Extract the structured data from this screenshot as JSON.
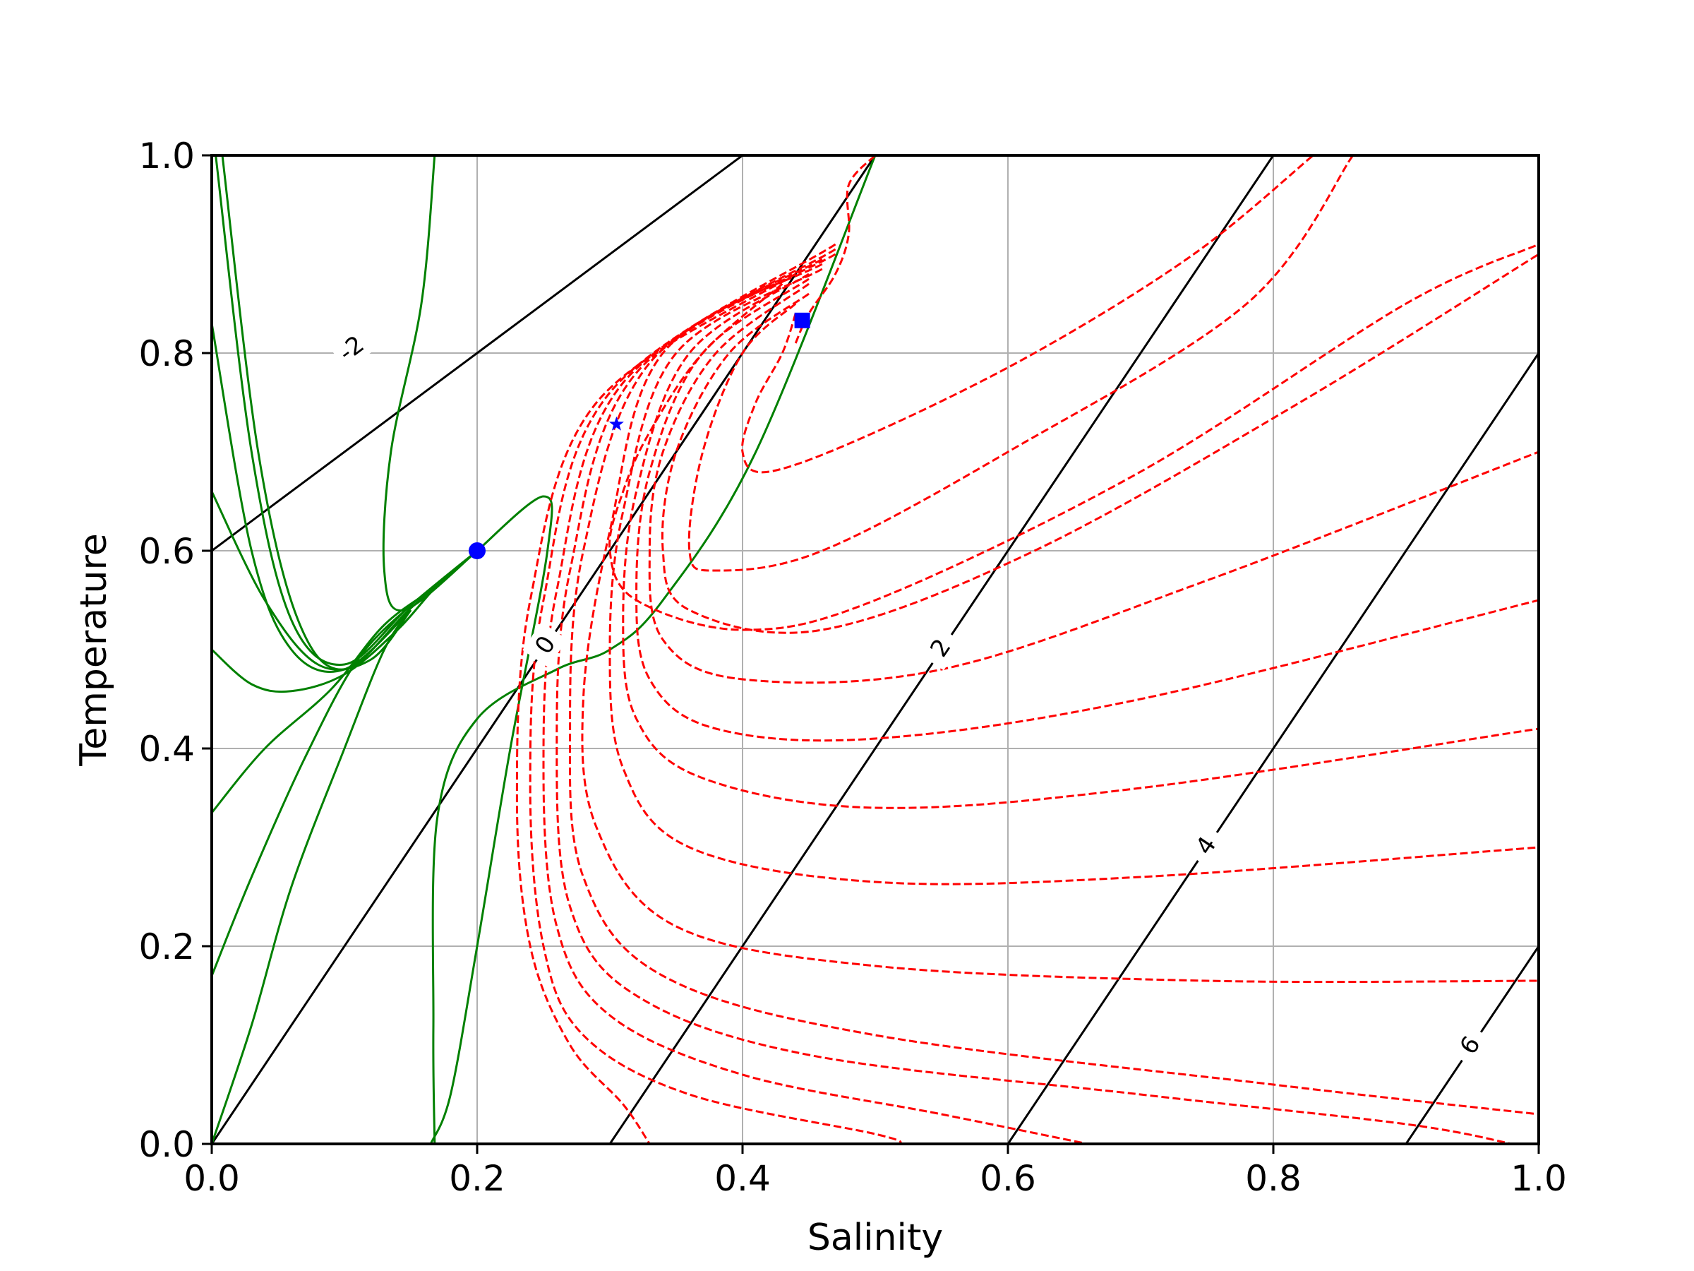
{
  "chart_data": {
    "type": "line",
    "title": "",
    "xlabel": "Salinity",
    "ylabel": "Temperature",
    "xlim": [
      0.0,
      1.0
    ],
    "ylim": [
      0.0,
      1.0
    ],
    "xticks": [
      0.0,
      0.2,
      0.4,
      0.6,
      0.8,
      1.0
    ],
    "yticks": [
      0.0,
      0.2,
      0.4,
      0.6,
      0.8,
      1.0
    ],
    "xtick_labels": [
      "0.0",
      "0.2",
      "0.4",
      "0.6",
      "0.8",
      "1.0"
    ],
    "ytick_labels": [
      "0.0",
      "0.2",
      "0.4",
      "0.6",
      "0.8",
      "1.0"
    ],
    "grid": true,
    "legend": null,
    "contour_lines": [
      {
        "level": "-2",
        "points": [
          [
            0.0,
            0.6
          ],
          [
            0.2,
            0.8
          ],
          [
            0.4,
            1.0
          ]
        ],
        "label_at": [
          0.105,
          0.805
        ]
      },
      {
        "level": "0",
        "points": [
          [
            0.0,
            0.0
          ],
          [
            0.5,
            1.0
          ]
        ],
        "label_at": [
          0.251,
          0.505
        ]
      },
      {
        "level": "2",
        "points": [
          [
            0.3,
            0.0
          ],
          [
            0.8,
            1.0
          ]
        ],
        "label_at": [
          0.549,
          0.502
        ]
      },
      {
        "level": "4",
        "points": [
          [
            0.6,
            0.0
          ],
          [
            1.0,
            0.8
          ]
        ],
        "label_at": [
          0.749,
          0.302
        ]
      },
      {
        "level": "6",
        "points": [
          [
            0.9,
            0.0
          ],
          [
            1.0,
            0.2
          ]
        ],
        "label_at": [
          0.948,
          0.1
        ]
      }
    ],
    "green_trajectories": [
      [
        [
          0.003,
          1.0
        ],
        [
          0.03,
          0.7
        ],
        [
          0.06,
          0.53
        ],
        [
          0.1,
          0.485
        ],
        [
          0.15,
          0.545
        ],
        [
          0.2,
          0.6
        ]
      ],
      [
        [
          0.008,
          1.0
        ],
        [
          0.035,
          0.7
        ],
        [
          0.065,
          0.53
        ],
        [
          0.1,
          0.48
        ],
        [
          0.15,
          0.542
        ],
        [
          0.2,
          0.6
        ]
      ],
      [
        [
          0.0,
          0.83
        ],
        [
          0.03,
          0.6
        ],
        [
          0.06,
          0.5
        ],
        [
          0.1,
          0.48
        ],
        [
          0.15,
          0.54
        ]
      ],
      [
        [
          0.0,
          0.66
        ],
        [
          0.04,
          0.55
        ],
        [
          0.08,
          0.485
        ],
        [
          0.12,
          0.49
        ],
        [
          0.15,
          0.54
        ]
      ],
      [
        [
          0.0,
          0.5
        ],
        [
          0.03,
          0.465
        ],
        [
          0.06,
          0.458
        ],
        [
          0.1,
          0.475
        ],
        [
          0.14,
          0.52
        ],
        [
          0.17,
          0.565
        ],
        [
          0.2,
          0.6
        ]
      ],
      [
        [
          0.0,
          0.335
        ],
        [
          0.04,
          0.4
        ],
        [
          0.09,
          0.46
        ],
        [
          0.13,
          0.525
        ],
        [
          0.17,
          0.565
        ],
        [
          0.2,
          0.6
        ]
      ],
      [
        [
          0.0,
          0.17
        ],
        [
          0.03,
          0.27
        ],
        [
          0.07,
          0.39
        ],
        [
          0.11,
          0.49
        ],
        [
          0.15,
          0.545
        ]
      ],
      [
        [
          0.0,
          0.0
        ],
        [
          0.03,
          0.12
        ],
        [
          0.06,
          0.26
        ],
        [
          0.1,
          0.4
        ],
        [
          0.13,
          0.5
        ],
        [
          0.15,
          0.54
        ]
      ],
      [
        [
          0.168,
          1.0
        ],
        [
          0.158,
          0.85
        ],
        [
          0.135,
          0.7
        ],
        [
          0.13,
          0.58
        ],
        [
          0.145,
          0.54
        ],
        [
          0.2,
          0.6
        ]
      ],
      [
        [
          0.2,
          0.6
        ],
        [
          0.25,
          0.655
        ],
        [
          0.253,
          0.6
        ],
        [
          0.225,
          0.4
        ],
        [
          0.2,
          0.2
        ],
        [
          0.18,
          0.05
        ],
        [
          0.165,
          0.0
        ]
      ],
      [
        [
          0.5,
          1.0
        ],
        [
          0.41,
          0.7
        ],
        [
          0.34,
          0.55
        ],
        [
          0.3,
          0.5
        ],
        [
          0.26,
          0.48
        ],
        [
          0.2,
          0.43
        ],
        [
          0.17,
          0.33
        ],
        [
          0.167,
          0.12
        ],
        [
          0.168,
          0.0
        ]
      ]
    ],
    "red_trajectories": [
      [
        [
          0.44,
          0.81
        ],
        [
          0.45,
          0.84
        ],
        [
          0.47,
          0.88
        ],
        [
          0.48,
          0.92
        ],
        [
          0.48,
          0.97
        ],
        [
          0.5,
          1.0
        ]
      ],
      [
        [
          0.44,
          0.84
        ],
        [
          0.43,
          0.8
        ],
        [
          0.41,
          0.75
        ],
        [
          0.4,
          0.7
        ],
        [
          0.42,
          0.68
        ],
        [
          0.5,
          0.72
        ],
        [
          0.62,
          0.8
        ],
        [
          0.74,
          0.9
        ],
        [
          0.83,
          1.0
        ]
      ],
      [
        [
          0.44,
          0.85
        ],
        [
          0.4,
          0.8
        ],
        [
          0.37,
          0.7
        ],
        [
          0.36,
          0.6
        ],
        [
          0.38,
          0.58
        ],
        [
          0.46,
          0.6
        ],
        [
          0.6,
          0.7
        ],
        [
          0.78,
          0.85
        ],
        [
          0.86,
          1.0
        ]
      ],
      [
        [
          0.45,
          0.86
        ],
        [
          0.39,
          0.8
        ],
        [
          0.35,
          0.7
        ],
        [
          0.34,
          0.6
        ],
        [
          0.36,
          0.54
        ],
        [
          0.46,
          0.52
        ],
        [
          0.62,
          0.6
        ],
        [
          0.82,
          0.75
        ],
        [
          1.0,
          0.9
        ]
      ],
      [
        [
          0.45,
          0.87
        ],
        [
          0.38,
          0.8
        ],
        [
          0.34,
          0.7
        ],
        [
          0.33,
          0.6
        ],
        [
          0.34,
          0.51
        ],
        [
          0.4,
          0.47
        ],
        [
          0.55,
          0.48
        ],
        [
          0.75,
          0.57
        ],
        [
          1.0,
          0.7
        ]
      ],
      [
        [
          0.45,
          0.875
        ],
        [
          0.37,
          0.8
        ],
        [
          0.33,
          0.68
        ],
        [
          0.32,
          0.56
        ],
        [
          0.33,
          0.47
        ],
        [
          0.38,
          0.42
        ],
        [
          0.5,
          0.41
        ],
        [
          0.7,
          0.45
        ],
        [
          1.0,
          0.55
        ]
      ],
      [
        [
          0.45,
          0.88
        ],
        [
          0.36,
          0.8
        ],
        [
          0.32,
          0.66
        ],
        [
          0.31,
          0.53
        ],
        [
          0.32,
          0.43
        ],
        [
          0.37,
          0.37
        ],
        [
          0.5,
          0.34
        ],
        [
          0.7,
          0.36
        ],
        [
          1.0,
          0.42
        ]
      ],
      [
        [
          0.46,
          0.885
        ],
        [
          0.35,
          0.8
        ],
        [
          0.31,
          0.64
        ],
        [
          0.3,
          0.5
        ],
        [
          0.31,
          0.38
        ],
        [
          0.36,
          0.3
        ],
        [
          0.5,
          0.265
        ],
        [
          0.7,
          0.27
        ],
        [
          1.0,
          0.3
        ]
      ],
      [
        [
          0.46,
          0.89
        ],
        [
          0.34,
          0.8
        ],
        [
          0.3,
          0.62
        ],
        [
          0.28,
          0.45
        ],
        [
          0.29,
          0.32
        ],
        [
          0.35,
          0.22
        ],
        [
          0.5,
          0.18
        ],
        [
          0.75,
          0.165
        ],
        [
          1.0,
          0.165
        ]
      ],
      [
        [
          0.46,
          0.895
        ],
        [
          0.33,
          0.79
        ],
        [
          0.28,
          0.6
        ],
        [
          0.27,
          0.42
        ],
        [
          0.28,
          0.27
        ],
        [
          0.34,
          0.17
        ],
        [
          0.5,
          0.11
        ],
        [
          0.8,
          0.06
        ],
        [
          1.0,
          0.03
        ]
      ],
      [
        [
          0.47,
          0.9
        ],
        [
          0.32,
          0.78
        ],
        [
          0.27,
          0.58
        ],
        [
          0.26,
          0.4
        ],
        [
          0.27,
          0.24
        ],
        [
          0.32,
          0.15
        ],
        [
          0.45,
          0.09
        ],
        [
          0.7,
          0.05
        ],
        [
          0.9,
          0.02
        ],
        [
          0.98,
          0.0
        ]
      ],
      [
        [
          0.47,
          0.905
        ],
        [
          0.31,
          0.77
        ],
        [
          0.26,
          0.56
        ],
        [
          0.25,
          0.38
        ],
        [
          0.26,
          0.22
        ],
        [
          0.3,
          0.13
        ],
        [
          0.4,
          0.07
        ],
        [
          0.55,
          0.03
        ],
        [
          0.66,
          0.0
        ]
      ],
      [
        [
          0.47,
          0.91
        ],
        [
          0.3,
          0.76
        ],
        [
          0.25,
          0.55
        ],
        [
          0.24,
          0.36
        ],
        [
          0.25,
          0.2
        ],
        [
          0.28,
          0.11
        ],
        [
          0.36,
          0.05
        ],
        [
          0.5,
          0.01
        ],
        [
          0.52,
          0.0
        ]
      ],
      [
        [
          0.44,
          0.88
        ],
        [
          0.29,
          0.75
        ],
        [
          0.24,
          0.55
        ],
        [
          0.23,
          0.35
        ],
        [
          0.24,
          0.2
        ],
        [
          0.27,
          0.1
        ],
        [
          0.31,
          0.04
        ],
        [
          0.33,
          0.0
        ]
      ],
      [
        [
          0.43,
          0.87
        ],
        [
          0.37,
          0.8
        ],
        [
          0.33,
          0.72
        ],
        [
          0.31,
          0.66
        ],
        [
          0.3,
          0.6
        ],
        [
          0.32,
          0.55
        ],
        [
          0.4,
          0.52
        ],
        [
          0.5,
          0.55
        ],
        [
          0.7,
          0.68
        ],
        [
          0.9,
          0.85
        ],
        [
          1.0,
          0.91
        ]
      ]
    ],
    "markers": [
      {
        "shape": "circle",
        "x": 0.2,
        "y": 0.6,
        "color": "#0000ff"
      },
      {
        "shape": "star",
        "x": 0.305,
        "y": 0.728,
        "color": "#0000ff"
      },
      {
        "shape": "square",
        "x": 0.445,
        "y": 0.833,
        "color": "#0000ff"
      }
    ],
    "colors": {
      "contour": "#000000",
      "green": "#008000",
      "red": "#ff0000",
      "marker": "#0000ff",
      "grid": "#b0b0b0"
    }
  }
}
